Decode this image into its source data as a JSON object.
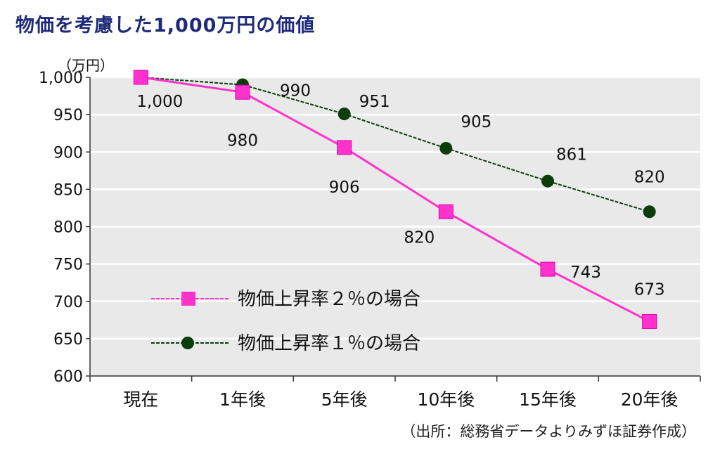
{
  "chart_data": {
    "type": "line",
    "title": "物価を考慮した1,000万円の価値",
    "ylabel": "（万円）",
    "categories": [
      "現在",
      "1年後",
      "5年後",
      "10年後",
      "15年後",
      "20年後"
    ],
    "ylim": [
      600,
      1000
    ],
    "yticks": [
      "1,000",
      "950",
      "900",
      "850",
      "800",
      "750",
      "700",
      "650",
      "600"
    ],
    "ytick_values": [
      1000,
      950,
      900,
      850,
      800,
      750,
      700,
      650,
      600
    ],
    "grid": true,
    "legend_position": "lower-left",
    "series": [
      {
        "name": "物価上昇率２％の場合",
        "values": [
          1000,
          980,
          906,
          820,
          743,
          673
        ],
        "labels": [
          "1,000",
          "980",
          "906",
          "820",
          "743",
          "673"
        ],
        "color": "#ff33cc",
        "marker": "square"
      },
      {
        "name": "物価上昇率１％の場合",
        "values": [
          1000,
          990,
          951,
          905,
          861,
          820
        ],
        "labels": [
          "",
          "990",
          "951",
          "905",
          "861",
          "820"
        ],
        "color": "#0b3d0b",
        "marker": "circle"
      }
    ],
    "source": "（出所：総務省データよりみずほ証券作成）"
  }
}
